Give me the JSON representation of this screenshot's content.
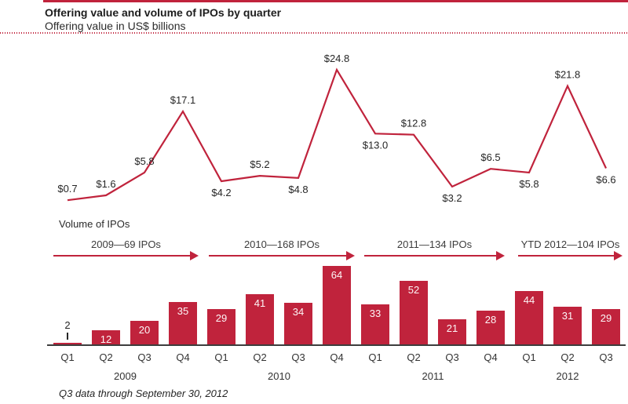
{
  "header": {
    "title": "Offering value and volume of IPOs by quarter",
    "subtitle": "Offering value in US$ billions"
  },
  "accent_color": "#c0233c",
  "volume_section": {
    "label": "Volume of IPOs",
    "arrows": [
      {
        "label": "2009—69 IPOs"
      },
      {
        "label": "2010—168 IPOs"
      },
      {
        "label": "2011—134 IPOs"
      },
      {
        "label": "YTD 2012—104 IPOs"
      }
    ]
  },
  "chart_data": [
    {
      "type": "line",
      "title": "Offering value in US$ billions",
      "x": [
        "Q1 2009",
        "Q2 2009",
        "Q3 2009",
        "Q4 2009",
        "Q1 2010",
        "Q2 2010",
        "Q3 2010",
        "Q4 2010",
        "Q1 2011",
        "Q2 2011",
        "Q3 2011",
        "Q4 2011",
        "Q1 2012",
        "Q2 2012",
        "Q3 2012"
      ],
      "values": [
        0.7,
        1.6,
        5.8,
        17.1,
        4.2,
        5.2,
        4.8,
        24.8,
        13.0,
        12.8,
        3.2,
        6.5,
        5.8,
        21.8,
        6.6
      ],
      "labels": [
        "$0.7",
        "$1.6",
        "$5.8",
        "$17.1",
        "$4.2",
        "$5.2",
        "$4.8",
        "$24.8",
        "$13.0",
        "$12.8",
        "$3.2",
        "$6.5",
        "$5.8",
        "$21.8",
        "$6.6"
      ],
      "label_side": [
        "above",
        "above",
        "above",
        "above",
        "below",
        "above",
        "below",
        "above",
        "below",
        "above",
        "below",
        "above",
        "below",
        "above",
        "below"
      ],
      "ylim": [
        0,
        27
      ],
      "grid": false,
      "legend": "none"
    },
    {
      "type": "bar",
      "title": "Volume of IPOs",
      "categories": [
        "Q1",
        "Q2",
        "Q3",
        "Q4",
        "Q1",
        "Q2",
        "Q3",
        "Q4",
        "Q1",
        "Q2",
        "Q3",
        "Q4",
        "Q1",
        "Q2",
        "Q3"
      ],
      "values": [
        2,
        12,
        20,
        35,
        29,
        41,
        34,
        64,
        33,
        52,
        21,
        28,
        44,
        31,
        29
      ],
      "years": [
        {
          "label": "2009",
          "quarters": 4,
          "total_ipos": 69
        },
        {
          "label": "2010",
          "quarters": 4,
          "total_ipos": 168
        },
        {
          "label": "2011",
          "quarters": 4,
          "total_ipos": 134
        },
        {
          "label": "2012",
          "quarters": 3,
          "total_ipos": 104
        }
      ],
      "ylim": [
        0,
        70
      ],
      "grid": false,
      "legend": "none"
    }
  ],
  "footnote": "Q3 data through September 30, 2012"
}
